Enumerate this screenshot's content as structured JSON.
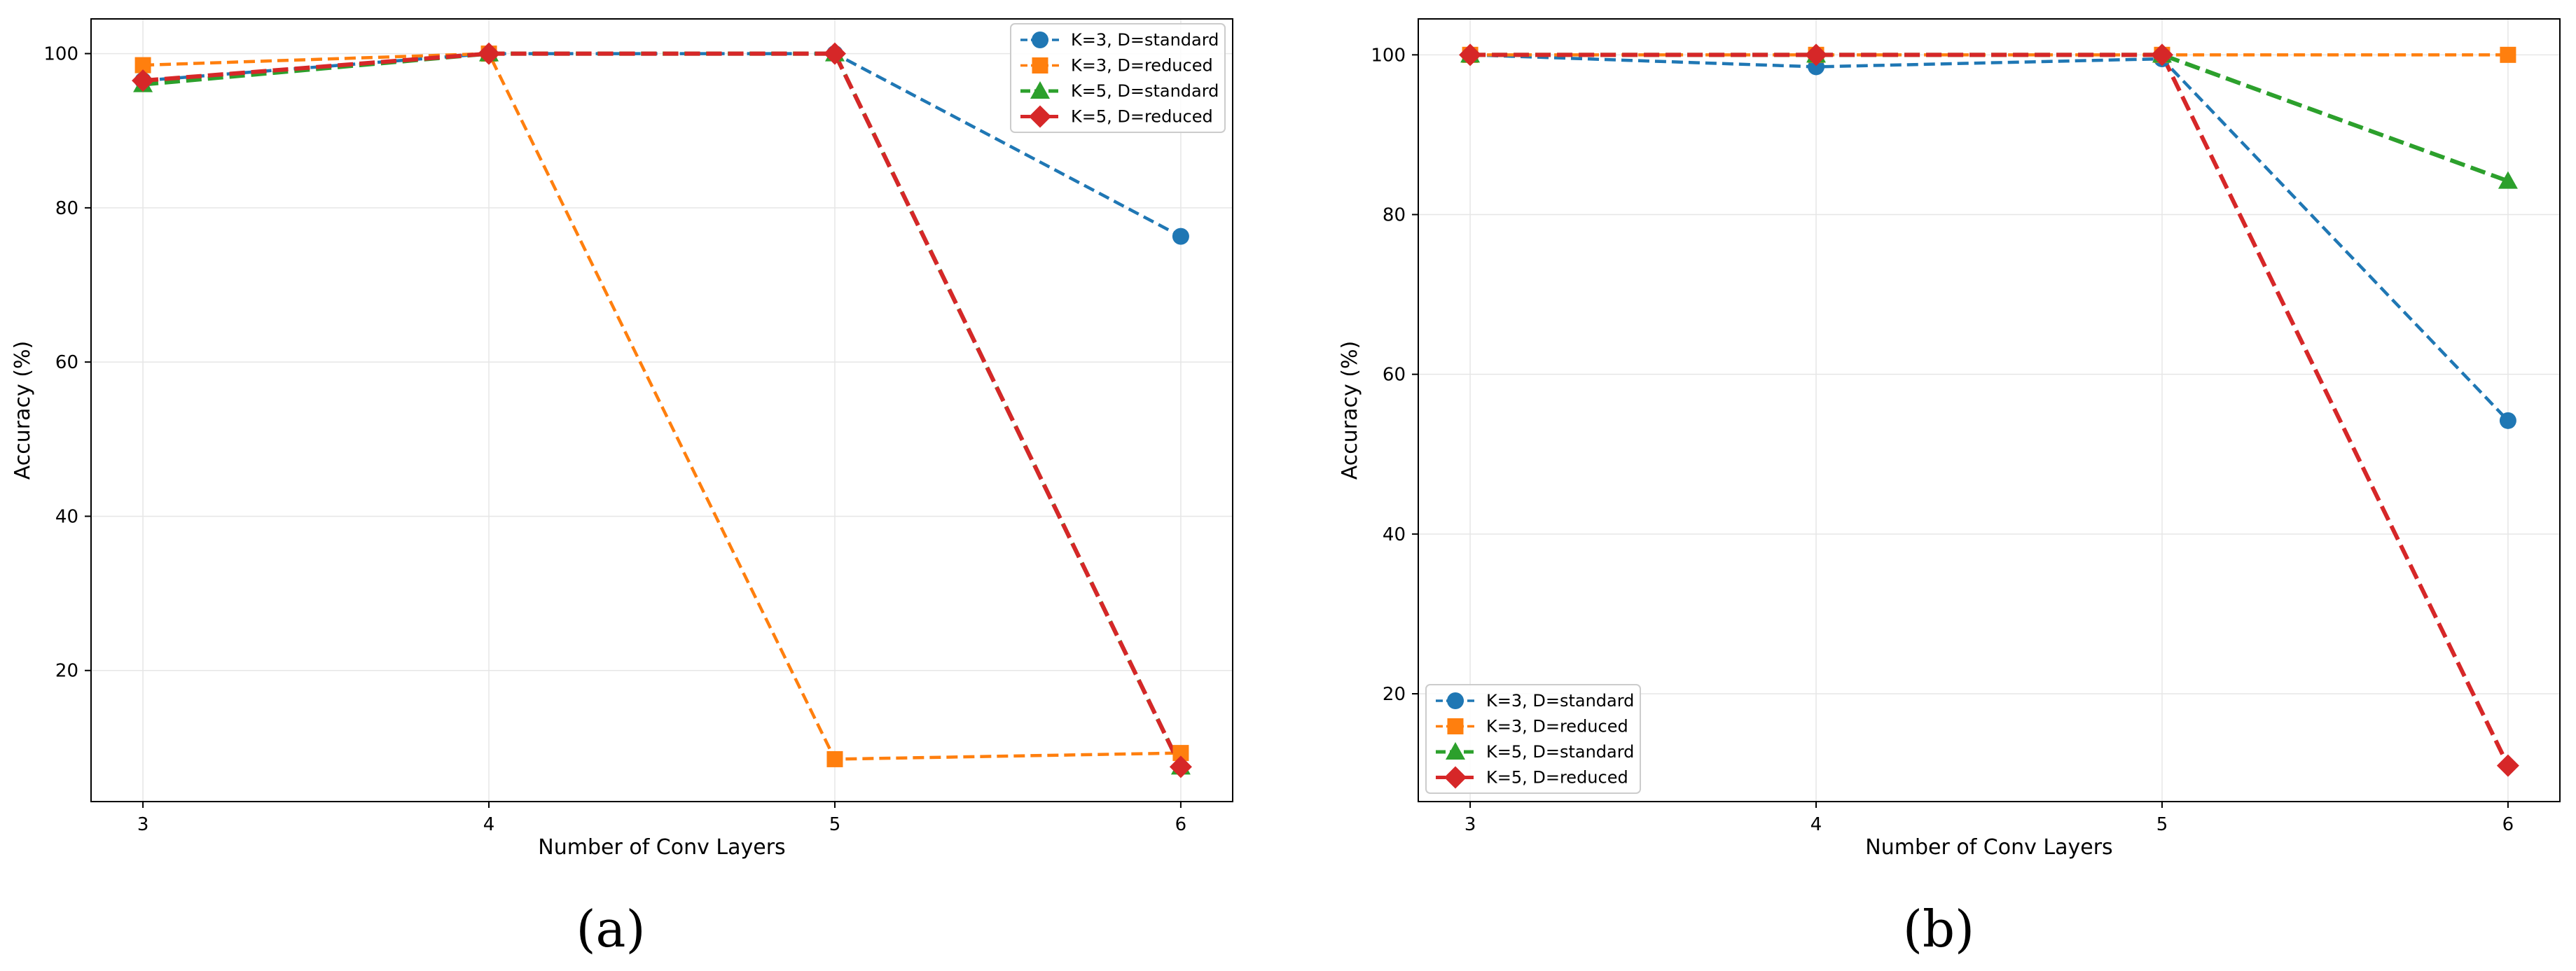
{
  "colors": {
    "k3_standard": "#1f77b4",
    "k3_reduced": "#ff7f0e",
    "k5_standard": "#2ca02c",
    "k5_reduced": "#d62728",
    "grid": "#e6e6e6",
    "axis": "#000000"
  },
  "chart_data": [
    {
      "type": "line",
      "caption": "(a)",
      "title": "",
      "xlabel": "Number of Conv Layers",
      "ylabel": "Accuracy (%)",
      "x": [
        3,
        4,
        5,
        6
      ],
      "xlim": [
        2.85,
        6.15
      ],
      "ylim": [
        3,
        104.5
      ],
      "yticks": [
        20,
        40,
        60,
        80,
        100
      ],
      "grid": true,
      "legend_position": "top-right",
      "series": [
        {
          "name": "K=3, D=standard",
          "key": "k3_standard",
          "marker": "circle",
          "width": "thin",
          "values": [
            96.5,
            100,
            100,
            76.3
          ]
        },
        {
          "name": "K=3, D=reduced",
          "key": "k3_reduced",
          "marker": "square",
          "width": "thin",
          "values": [
            98.5,
            100,
            8.5,
            9.3
          ]
        },
        {
          "name": "K=5, D=standard",
          "key": "k5_standard",
          "marker": "triangle",
          "width": "thick",
          "values": [
            96,
            100,
            100,
            7.5
          ]
        },
        {
          "name": "K=5, D=reduced",
          "key": "k5_reduced",
          "marker": "diamond",
          "width": "thick",
          "values": [
            96.5,
            100,
            100,
            7.5
          ]
        }
      ]
    },
    {
      "type": "line",
      "caption": "(b)",
      "title": "",
      "xlabel": "Number of Conv Layers",
      "ylabel": "Accuracy (%)",
      "x": [
        3,
        4,
        5,
        6
      ],
      "xlim": [
        2.85,
        6.15
      ],
      "ylim": [
        6.5,
        104.5
      ],
      "yticks": [
        20,
        40,
        60,
        80,
        100
      ],
      "grid": true,
      "legend_position": "bottom-left",
      "series": [
        {
          "name": "K=3, D=standard",
          "key": "k3_standard",
          "marker": "circle",
          "width": "thin",
          "values": [
            100,
            98.5,
            99.5,
            54.2
          ]
        },
        {
          "name": "K=3, D=reduced",
          "key": "k3_reduced",
          "marker": "square",
          "width": "thin",
          "values": [
            100,
            100,
            100,
            100
          ]
        },
        {
          "name": "K=5, D=standard",
          "key": "k5_standard",
          "marker": "triangle",
          "width": "thick",
          "values": [
            100,
            100,
            100,
            84.2
          ]
        },
        {
          "name": "K=5, D=reduced",
          "key": "k5_reduced",
          "marker": "diamond",
          "width": "thick",
          "values": [
            100,
            100,
            100,
            11
          ]
        }
      ]
    }
  ]
}
